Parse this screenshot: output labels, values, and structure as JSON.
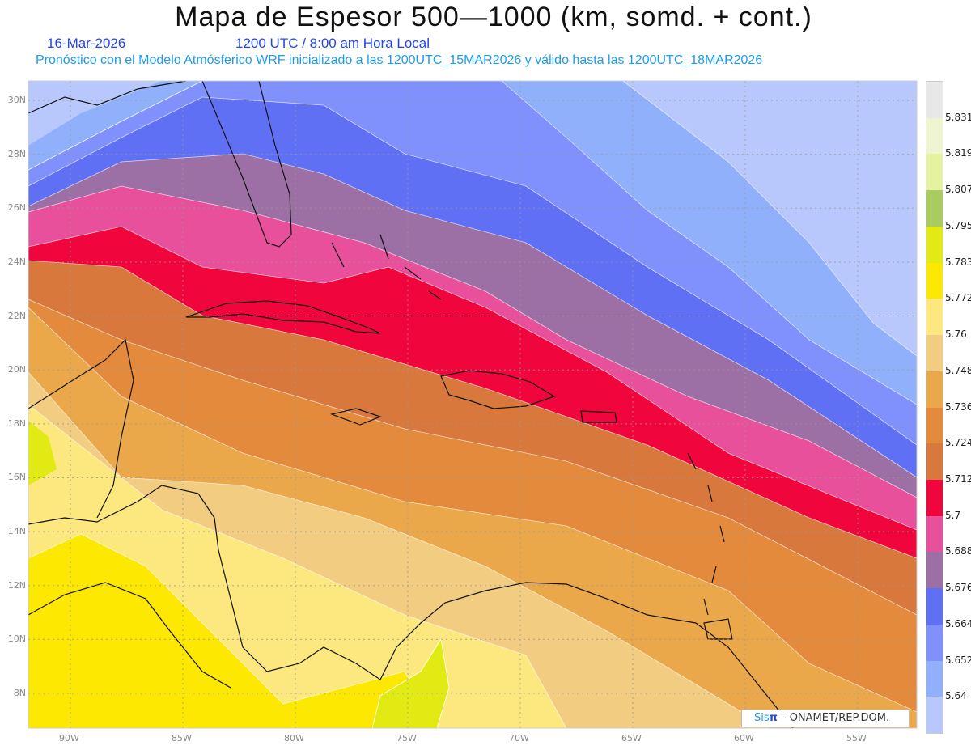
{
  "header": {
    "title": "Mapa de Espesor 500—1000 (km, somd. + cont.)",
    "date": "16-Mar-2026",
    "time": "1200 UTC / 8:00 am Hora Local",
    "subtitle": "Pronóstico con el Modelo Atmósferico WRF inicializado a las 1200UTC_15MAR2026 y válido hasta las  1200UTC_18MAR2026"
  },
  "map": {
    "lat_labels": [
      "30N",
      "28N",
      "26N",
      "24N",
      "22N",
      "20N",
      "18N",
      "16N",
      "14N",
      "12N",
      "10N",
      "8N"
    ],
    "lat_values": [
      30,
      28,
      26,
      24,
      22,
      20,
      18,
      16,
      14,
      12,
      10,
      8
    ],
    "lon_labels": [
      "90W",
      "85W",
      "80W",
      "75W",
      "70W",
      "65W",
      "60W",
      "55W"
    ],
    "lon_values": [
      -90,
      -85,
      -80,
      -75,
      -70,
      -65,
      -60,
      -55
    ]
  },
  "colorbar": {
    "levels": [
      "5.831",
      "5.819",
      "5.807",
      "5.795",
      "5.783",
      "5.772",
      "5.76",
      "5.748",
      "5.736",
      "5.724",
      "5.712",
      "5.7",
      "5.688",
      "5.676",
      "5.664",
      "5.652",
      "5.64"
    ],
    "colors": [
      "#e8e8e8",
      "#eef5d0",
      "#e5f3a0",
      "#a8cc60",
      "#e2ea14",
      "#fce800",
      "#fde880",
      "#f2cc80",
      "#eba84a",
      "#e38a3c",
      "#d8783c",
      "#f0063c",
      "#e8509c",
      "#9c70a4",
      "#6070f4",
      "#8090fc",
      "#90b0fc",
      "#b8c8fc"
    ]
  },
  "credit": {
    "logo_sis": "Sis",
    "logo_pi": "π",
    "text": " – ONAMET/REP.DOM."
  }
}
